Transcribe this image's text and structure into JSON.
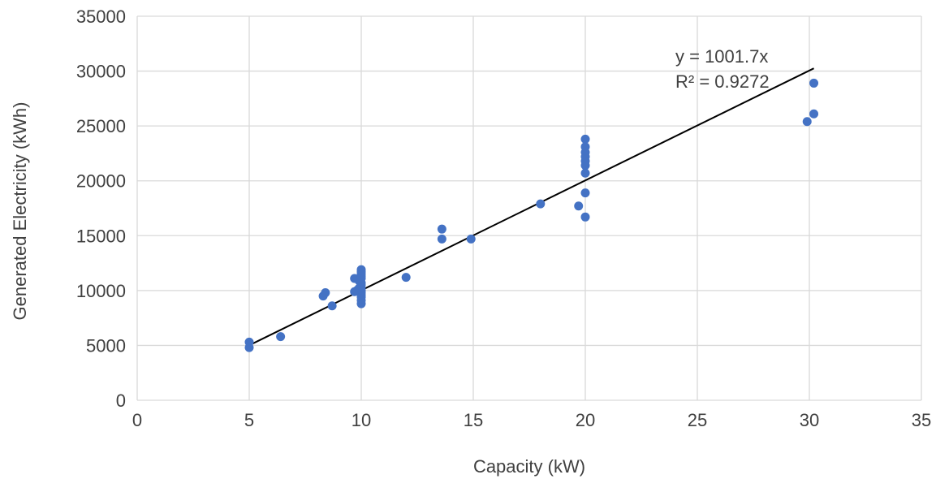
{
  "chart_data": {
    "type": "scatter",
    "xlabel": "Capacity (kW)",
    "ylabel": "Generated Electricity (kWh)",
    "xlim": [
      0,
      35
    ],
    "ylim": [
      0,
      35000
    ],
    "x_ticks": [
      "0",
      "5",
      "10",
      "15",
      "20",
      "25",
      "30",
      "35"
    ],
    "y_ticks": [
      "0",
      "5000",
      "10000",
      "15000",
      "20000",
      "25000",
      "30000",
      "35000"
    ],
    "grid": true,
    "legend": "none",
    "marker_color": "#4472C4",
    "trendline": {
      "type": "linear-through-origin",
      "slope": 1001.7,
      "x_range": [
        5,
        30.2
      ],
      "color": "#000000",
      "equation": "y = 1001.7x",
      "r_squared": "R² = 0.9272"
    },
    "series": [
      {
        "points": [
          [
            5.0,
            5300
          ],
          [
            5.0,
            4800
          ],
          [
            6.4,
            5800
          ],
          [
            8.3,
            9500
          ],
          [
            8.4,
            9800
          ],
          [
            8.7,
            8600
          ],
          [
            9.7,
            11100
          ],
          [
            9.7,
            9900
          ],
          [
            9.8,
            10000
          ],
          [
            9.9,
            10900
          ],
          [
            9.9,
            10200
          ],
          [
            10.0,
            11900
          ],
          [
            10.0,
            11700
          ],
          [
            10.0,
            11500
          ],
          [
            10.0,
            11300
          ],
          [
            10.0,
            11100
          ],
          [
            10.0,
            10700
          ],
          [
            10.0,
            10500
          ],
          [
            10.0,
            10200
          ],
          [
            10.0,
            10000
          ],
          [
            10.0,
            9800
          ],
          [
            10.0,
            9600
          ],
          [
            10.0,
            9400
          ],
          [
            10.0,
            9100
          ],
          [
            10.0,
            8800
          ],
          [
            12.0,
            11200
          ],
          [
            13.6,
            15600
          ],
          [
            13.6,
            14700
          ],
          [
            14.9,
            14700
          ],
          [
            18.0,
            17900
          ],
          [
            19.7,
            17700
          ],
          [
            20.0,
            23800
          ],
          [
            20.0,
            23100
          ],
          [
            20.0,
            22600
          ],
          [
            20.0,
            22200
          ],
          [
            20.0,
            21800
          ],
          [
            20.0,
            21400
          ],
          [
            20.0,
            20700
          ],
          [
            20.0,
            18900
          ],
          [
            20.0,
            16700
          ],
          [
            29.9,
            25400
          ],
          [
            30.2,
            28900
          ],
          [
            30.2,
            26100
          ]
        ]
      }
    ]
  }
}
